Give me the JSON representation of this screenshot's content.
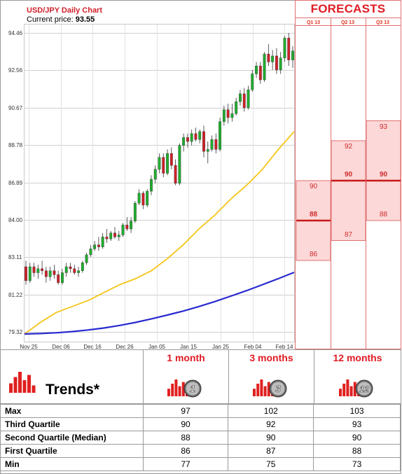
{
  "header": {
    "title": "USD/JPY Daily Chart",
    "price_label": "Current price:",
    "price_value": "93.55"
  },
  "forecasts": {
    "title": "FORECASTS",
    "quarters": [
      "Q1 13",
      "Q2 13",
      "Q3 13"
    ],
    "ranges": [
      {
        "high": "90",
        "mid": "88",
        "low": "86",
        "high_v": 90,
        "mid_v": 88,
        "low_v": 86
      },
      {
        "high": "92",
        "mid": "90",
        "low": "87",
        "high_v": 92,
        "mid_v": 90,
        "low_v": 87
      },
      {
        "high": "93",
        "mid": "90",
        "low": "88",
        "high_v": 93,
        "mid_v": 90,
        "low_v": 88
      }
    ]
  },
  "chart_data": {
    "type": "candlestick",
    "title": "USD/JPY Daily Chart",
    "yticks": [
      "94.46",
      "92.56",
      "90.67",
      "88.78",
      "86.89",
      "84.00",
      "83.11",
      "81.22",
      "79.32"
    ],
    "xticks": [
      "Nov 25",
      "Dec 06",
      "Dec 16",
      "Dec 26",
      "Jan 05",
      "Jan 15",
      "Jan 25",
      "Feb 04",
      "Feb 14"
    ],
    "ylim": [
      79.32,
      94.46
    ],
    "colors": {
      "up": "#1fae2e",
      "down": "#cf2027",
      "ma_short": "#f5c518",
      "ma_long": "#2a2ad0"
    },
    "ma_short": [
      79.32,
      79.9,
      80.4,
      80.7,
      81.0,
      81.4,
      81.8,
      82.1,
      82.5,
      83.1,
      83.8,
      84.6,
      85.3,
      86.1,
      86.8,
      87.6,
      88.6,
      89.5
    ],
    "ma_long": [
      79.32,
      79.34,
      79.38,
      79.44,
      79.52,
      79.62,
      79.75,
      79.9,
      80.08,
      80.27,
      80.47,
      80.7,
      80.95,
      81.22,
      81.5,
      81.8,
      82.1,
      82.42
    ],
    "candles": [
      [
        82.7,
        83.0,
        81.8,
        82.0
      ],
      [
        82.0,
        82.9,
        81.9,
        82.7
      ],
      [
        82.7,
        82.9,
        82.2,
        82.4
      ],
      [
        82.4,
        82.8,
        82.1,
        82.6
      ],
      [
        82.6,
        83.0,
        82.3,
        82.5
      ],
      [
        82.5,
        82.7,
        81.9,
        82.2
      ],
      [
        82.2,
        82.7,
        82.0,
        82.5
      ],
      [
        82.5,
        82.8,
        82.1,
        82.3
      ],
      [
        82.3,
        82.5,
        81.8,
        81.9
      ],
      [
        81.9,
        82.6,
        81.8,
        82.4
      ],
      [
        82.4,
        82.9,
        82.2,
        82.7
      ],
      [
        82.7,
        82.9,
        82.4,
        82.6
      ],
      [
        82.6,
        82.8,
        82.3,
        82.4
      ],
      [
        82.4,
        82.7,
        82.2,
        82.5
      ],
      [
        82.5,
        83.0,
        82.4,
        82.9
      ],
      [
        82.9,
        83.4,
        82.8,
        83.3
      ],
      [
        83.3,
        83.8,
        83.2,
        83.6
      ],
      [
        83.6,
        84.0,
        83.5,
        83.8
      ],
      [
        83.8,
        84.2,
        83.5,
        83.7
      ],
      [
        83.7,
        84.4,
        83.6,
        84.2
      ],
      [
        84.2,
        84.6,
        83.9,
        84.1
      ],
      [
        84.1,
        84.5,
        84.0,
        84.4
      ],
      [
        84.4,
        84.7,
        84.1,
        84.2
      ],
      [
        84.2,
        84.5,
        84.0,
        84.3
      ],
      [
        84.3,
        84.9,
        84.2,
        84.8
      ],
      [
        84.8,
        85.2,
        84.5,
        84.6
      ],
      [
        84.6,
        85.2,
        84.4,
        85.0
      ],
      [
        85.0,
        86.0,
        84.9,
        85.9
      ],
      [
        85.9,
        86.6,
        85.8,
        86.4
      ],
      [
        86.4,
        86.5,
        85.6,
        85.8
      ],
      [
        85.8,
        86.6,
        85.7,
        86.5
      ],
      [
        86.5,
        87.3,
        86.3,
        87.1
      ],
      [
        87.1,
        87.8,
        86.9,
        87.6
      ],
      [
        87.6,
        88.4,
        87.4,
        88.2
      ],
      [
        88.2,
        88.4,
        87.2,
        87.4
      ],
      [
        87.4,
        88.6,
        87.3,
        88.4
      ],
      [
        88.4,
        88.7,
        87.6,
        87.8
      ],
      [
        87.8,
        88.1,
        86.8,
        86.9
      ],
      [
        86.9,
        88.9,
        86.8,
        88.8
      ],
      [
        88.8,
        89.4,
        88.5,
        89.2
      ],
      [
        89.2,
        89.4,
        88.7,
        89.0
      ],
      [
        89.0,
        89.6,
        88.8,
        89.4
      ],
      [
        89.4,
        89.7,
        89.0,
        89.1
      ],
      [
        89.1,
        89.6,
        88.9,
        89.5
      ],
      [
        89.5,
        89.8,
        88.2,
        88.5
      ],
      [
        88.5,
        89.0,
        87.9,
        88.6
      ],
      [
        88.6,
        89.3,
        88.5,
        89.1
      ],
      [
        89.1,
        89.4,
        88.4,
        88.6
      ],
      [
        88.6,
        90.2,
        88.5,
        90.0
      ],
      [
        90.0,
        90.8,
        89.8,
        90.6
      ],
      [
        90.6,
        90.9,
        89.9,
        90.2
      ],
      [
        90.2,
        90.9,
        90.0,
        90.4
      ],
      [
        90.4,
        91.2,
        90.3,
        91.0
      ],
      [
        91.0,
        91.6,
        90.8,
        91.4
      ],
      [
        91.4,
        91.7,
        90.5,
        90.7
      ],
      [
        90.7,
        91.8,
        90.6,
        91.6
      ],
      [
        91.6,
        92.6,
        91.5,
        92.4
      ],
      [
        92.4,
        93.0,
        92.2,
        92.8
      ],
      [
        92.8,
        93.0,
        91.9,
        92.1
      ],
      [
        92.1,
        93.5,
        92.0,
        93.4
      ],
      [
        93.4,
        93.9,
        92.8,
        93.0
      ],
      [
        93.0,
        93.6,
        92.6,
        93.3
      ],
      [
        93.3,
        93.7,
        92.4,
        92.6
      ],
      [
        92.6,
        93.5,
        92.4,
        93.2
      ],
      [
        93.2,
        94.3,
        93.0,
        94.2
      ],
      [
        94.2,
        94.46,
        92.8,
        93.1
      ],
      [
        93.1,
        93.8,
        92.7,
        93.55
      ]
    ]
  },
  "trends": {
    "title": "Trends*",
    "columns": [
      "1 month",
      "3 months",
      "12 months"
    ],
    "badges": [
      "1",
      "3",
      "12"
    ],
    "rows": [
      {
        "label": "Max",
        "values": [
          "97",
          "102",
          "103"
        ]
      },
      {
        "label": "Third Quartile",
        "values": [
          "90",
          "92",
          "93"
        ]
      },
      {
        "label": "Second Quartile (Median)",
        "values": [
          "88",
          "90",
          "90"
        ]
      },
      {
        "label": "First Quartile",
        "values": [
          "86",
          "87",
          "88"
        ]
      },
      {
        "label": "Min",
        "values": [
          "77",
          "75",
          "73"
        ]
      }
    ]
  }
}
